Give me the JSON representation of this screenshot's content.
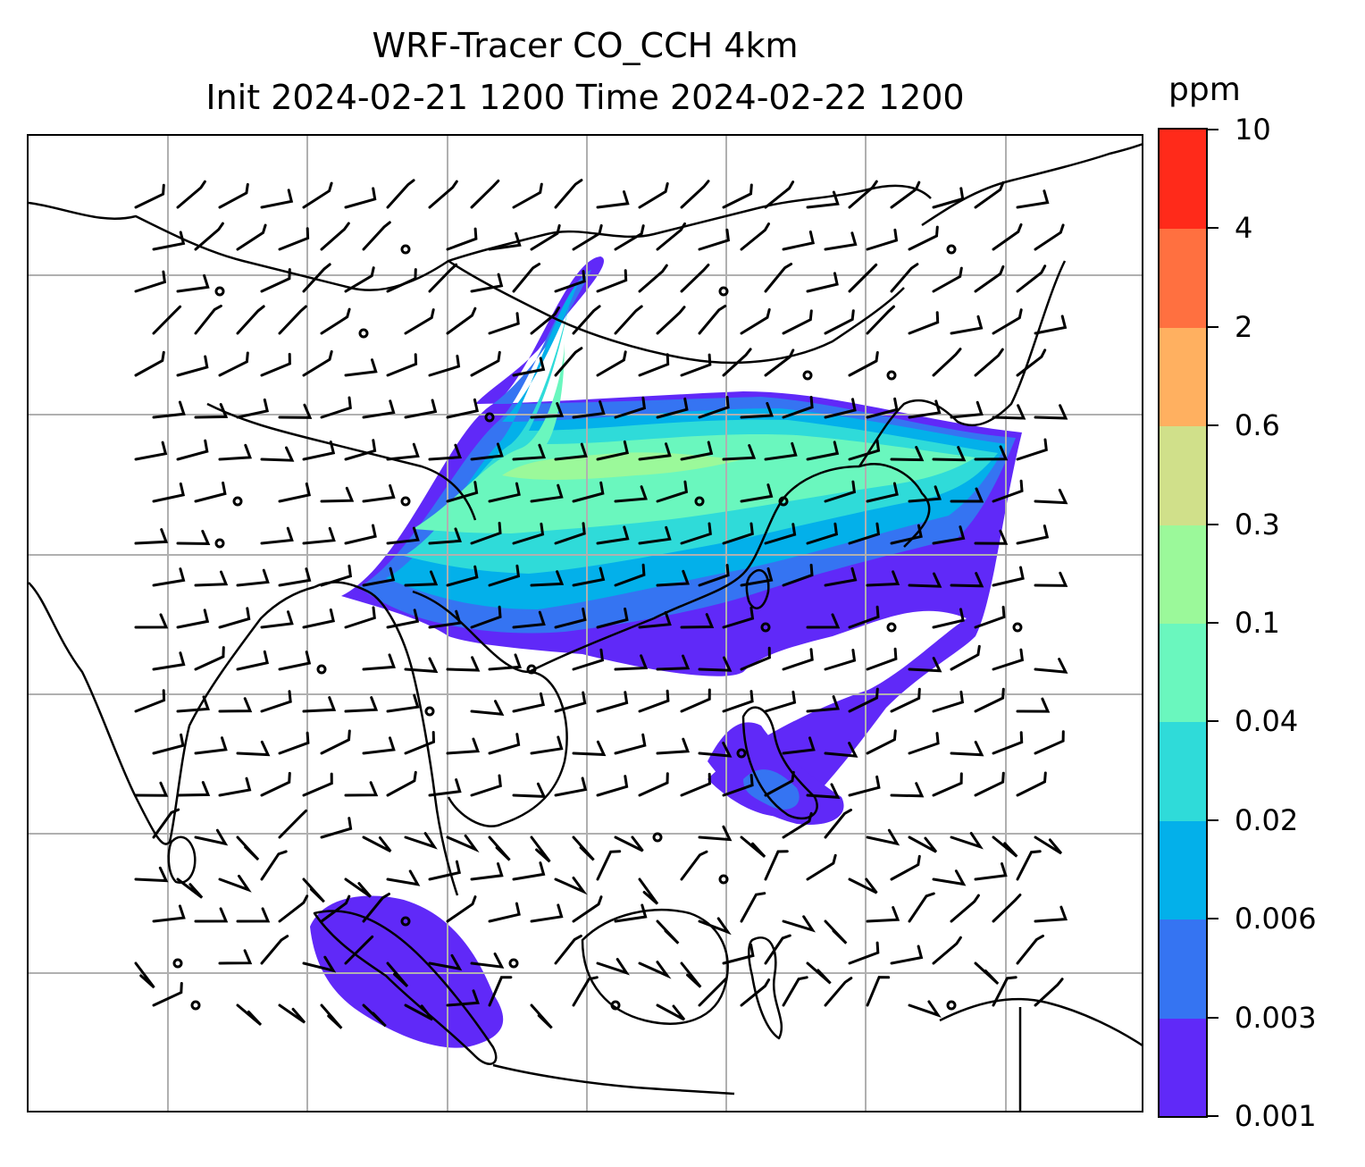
{
  "title": {
    "line1": "WRF-Tracer CO_CCH 4km",
    "line2": "Init 2024-02-21 1200 Time 2024-02-22 1200"
  },
  "colorbar": {
    "unit": "ppm",
    "levels": [
      "0.001",
      "0.003",
      "0.006",
      "0.02",
      "0.04",
      "0.1",
      "0.3",
      "0.6",
      "2",
      "4",
      "10"
    ],
    "colors": [
      "#6029f8",
      "#3574f2",
      "#03b0ea",
      "#2fdbd9",
      "#6af7be",
      "#9bf99a",
      "#d0e08a",
      "#ffb060",
      "#ff7040",
      "#ff2a1a"
    ]
  },
  "map": {
    "gridlines": true,
    "grid_color": "#b0b0b0",
    "coastline_color": "#000000",
    "field_color": "#6029f8",
    "wind_barb_color": "#000000"
  }
}
